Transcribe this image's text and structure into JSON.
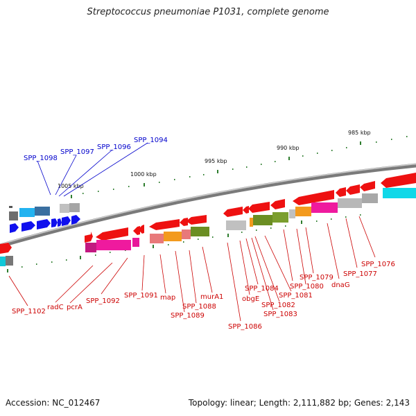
{
  "title": "Streptococcus pneumoniae P1031, complete genome",
  "footer": {
    "accession": "Accession: NC_012467",
    "summary": "Topology: linear; Length: 2,111,882 bp; Genes: 2,143"
  },
  "scale_ticks": [
    "985 kbp",
    "990 kbp",
    "995 kbp",
    "1000 kbp",
    "1005 kbp"
  ],
  "labels_blue": [
    "SPP_1098",
    "SPP_1097",
    "SPP_1096",
    "SPP_1094"
  ],
  "labels_red": [
    "SPP_1102",
    "radC",
    "pcrA",
    "SPP_1092",
    "SPP_1091",
    "map",
    "SPP_1089",
    "SPP_1088",
    "murA1",
    "SPP_1086",
    "obgE",
    "SPP_1084",
    "SPP_1083",
    "SPP_1082",
    "SPP_1081",
    "SPP_1080",
    "SPP_1079",
    "dnaG",
    "SPP_1077",
    "SPP_1076"
  ],
  "colors": {
    "gene_red": "#ee1111",
    "gene_blue": "#0000ee",
    "pink": "#e8189a",
    "orange": "#f39a1e",
    "olive": "#6b8e23",
    "cyan": "#10d8e8",
    "grey": "#b8b8b8",
    "tick_green": "#2e7d2e"
  }
}
